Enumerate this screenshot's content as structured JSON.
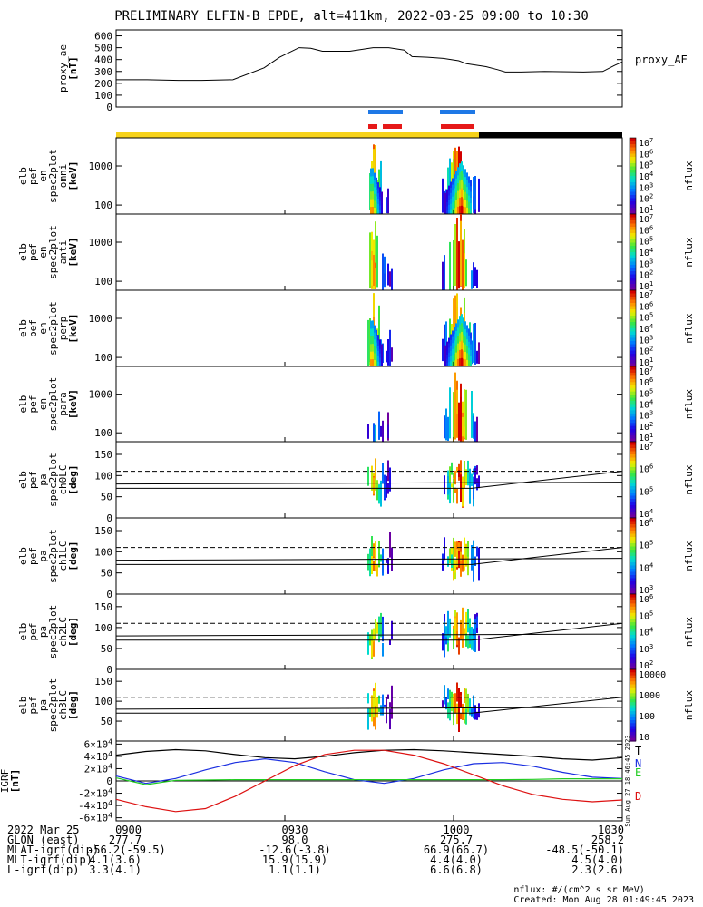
{
  "title": "PRELIMINARY ELFIN-B EPDE, alt=411km, 2022-03-25 09:00 to 10:30",
  "colors": {
    "orbit_yellow": "#f6d21a",
    "orbit_black": "#000000",
    "blue_bar": "#1e78e6",
    "red_bar": "#e61919",
    "line_T": "#000000",
    "line_N": "#1a2ee0",
    "line_E": "#22cc22",
    "line_D": "#dd1111"
  },
  "chart_data": [
    {
      "type": "line",
      "name": "proxy_ae",
      "ylabel": "proxy_ae [nT]",
      "legend": "proxy_AE",
      "ylim": [
        0,
        650
      ],
      "yticks": [
        "0",
        "100",
        "200",
        "300",
        "400",
        "500",
        "600"
      ],
      "x": [
        0,
        8,
        16,
        22,
        30,
        38,
        42,
        47,
        50,
        53,
        60,
        66,
        70,
        74,
        76,
        80,
        84,
        88,
        90,
        95,
        98,
        100,
        104,
        110,
        120,
        125,
        128,
        130
      ],
      "values": [
        230,
        230,
        225,
        225,
        230,
        330,
        420,
        500,
        495,
        470,
        470,
        500,
        500,
        480,
        425,
        420,
        410,
        390,
        365,
        340,
        315,
        295,
        295,
        300,
        295,
        300,
        350,
        380
      ]
    },
    {
      "type": "heatmap",
      "name": "elb pef en spec2plot omni",
      "ylabel": [
        "elb",
        "pef",
        "en",
        "spec2plot",
        "omni",
        "[keV]"
      ],
      "yticks": [
        "100",
        "1000"
      ],
      "cbticks": [
        "10^7",
        "10^6",
        "10^5",
        "10^4",
        "10^3",
        "10^2",
        "10^1"
      ],
      "cblabel": "nflux"
    },
    {
      "type": "heatmap",
      "name": "elb pef en spec2plot anti",
      "ylabel": [
        "elb",
        "pef",
        "en",
        "spec2plot",
        "anti",
        "[keV]"
      ],
      "yticks": [
        "100",
        "1000"
      ],
      "cbticks": [
        "10^7",
        "10^6",
        "10^5",
        "10^4",
        "10^3",
        "10^2",
        "10^1"
      ],
      "cblabel": "nflux"
    },
    {
      "type": "heatmap",
      "name": "elb pef en spec2plot perp",
      "ylabel": [
        "elb",
        "pef",
        "en",
        "spec2plot",
        "perp",
        "[keV]"
      ],
      "yticks": [
        "100",
        "1000"
      ],
      "cbticks": [
        "10^7",
        "10^6",
        "10^5",
        "10^4",
        "10^3",
        "10^2",
        "10^1"
      ],
      "cblabel": "nflux"
    },
    {
      "type": "heatmap",
      "name": "elb pef en spec2plot para",
      "ylabel": [
        "elb",
        "pef",
        "en",
        "spec2plot",
        "para",
        "[keV]"
      ],
      "yticks": [
        "100",
        "1000"
      ],
      "cbticks": [
        "10^7",
        "10^6",
        "10^5",
        "10^4",
        "10^3",
        "10^2",
        "10^1"
      ],
      "cblabel": "nflux"
    },
    {
      "type": "heatmap",
      "name": "elb pef pa spec2plot ch0LC",
      "ylabel": [
        "elb",
        "pef",
        "pa",
        "spec2plot",
        "ch0LC",
        "[deg]"
      ],
      "yticks": [
        "0",
        "50",
        "100",
        "150"
      ],
      "cbticks": [
        "10^7",
        "10^6",
        "10^5",
        "10^4"
      ],
      "cblabel": "nflux"
    },
    {
      "type": "heatmap",
      "name": "elb pef pa spec2plot ch1LC",
      "ylabel": [
        "elb",
        "pef",
        "pa",
        "spec2plot",
        "ch1LC",
        "[deg]"
      ],
      "yticks": [
        "0",
        "50",
        "100",
        "150"
      ],
      "cbticks": [
        "10^6",
        "10^5",
        "10^4",
        "10^3"
      ],
      "cblabel": "nflux"
    },
    {
      "type": "heatmap",
      "name": "elb pef pa spec2plot ch2LC",
      "ylabel": [
        "elb",
        "pef",
        "pa",
        "spec2plot",
        "ch2LC",
        "[deg]"
      ],
      "yticks": [
        "0",
        "50",
        "100",
        "150"
      ],
      "cbticks": [
        "10^6",
        "10^5",
        "10^4",
        "10^3",
        "10^2"
      ],
      "cblabel": "nflux"
    },
    {
      "type": "heatmap",
      "name": "elb pef pa spec2plot ch3LC",
      "ylabel": [
        "elb",
        "pef",
        "pa",
        "spec2plot",
        "ch3LC",
        "[deg]"
      ],
      "yticks": [
        "50",
        "100",
        "150"
      ],
      "cbticks": [
        "10000",
        "1000",
        "100",
        "10"
      ],
      "cblabel": "nflux"
    },
    {
      "type": "line",
      "name": "IGRF",
      "ylabel": "IGRF [nT]",
      "yticks": [
        "6×10^4",
        "4×10^4",
        "2×10^4",
        "0",
        "-2×10^4",
        "-4×10^4",
        "-6×10^4"
      ],
      "ylim": [
        -65000,
        65000
      ],
      "series": [
        {
          "name": "T",
          "values": [
            42000,
            48000,
            51000,
            49000,
            43000,
            38000,
            36000,
            40000,
            46000,
            50000,
            51000,
            49000,
            46000,
            43000,
            40000,
            36000,
            34000,
            38000
          ]
        },
        {
          "name": "N",
          "values": [
            8000,
            -4000,
            4000,
            18000,
            30000,
            36000,
            30000,
            15000,
            2000,
            -4000,
            4000,
            18000,
            28000,
            30000,
            24000,
            14000,
            6000,
            4000
          ]
        },
        {
          "name": "E",
          "values": [
            5000,
            -6000,
            1000,
            1500,
            2000,
            2000,
            2000,
            2000,
            2000,
            2000,
            2000,
            2000,
            2000,
            2000,
            2500,
            3500,
            3500,
            3500
          ]
        },
        {
          "name": "D",
          "values": [
            -30000,
            -42000,
            -50000,
            -45000,
            -25000,
            0,
            25000,
            43000,
            50000,
            50000,
            42000,
            28000,
            10000,
            -8000,
            -22000,
            -30000,
            -34000,
            -31000
          ]
        }
      ],
      "sidetext": "Sun Aug 27 18:46:45 2023"
    }
  ],
  "footer": {
    "rows": [
      [
        "2022 Mar 25",
        "0900",
        "0930",
        "1000",
        "1030"
      ],
      [
        "GLON (east)",
        "277.7",
        "98.0",
        "275.7",
        "258.2"
      ],
      [
        "MLAT-igrf(dip)",
        "-56.2(-59.5)",
        "-12.6(-3.8)",
        "66.9(66.7)",
        "-48.5(-50.1)"
      ],
      [
        "MLT-igrf(dip)",
        "4.1(3.6)",
        "15.9(15.9)",
        "4.4(4.0)",
        "4.5(4.0)"
      ],
      [
        "L-igrf(dip)",
        "3.3(4.1)",
        "1.1(1.1)",
        "6.6(6.8)",
        "2.3(2.6)"
      ]
    ],
    "unit_note": "nflux: #/(cm^2 s sr MeV)",
    "created": "Created: Mon Aug 28 01:49:45 2023"
  }
}
